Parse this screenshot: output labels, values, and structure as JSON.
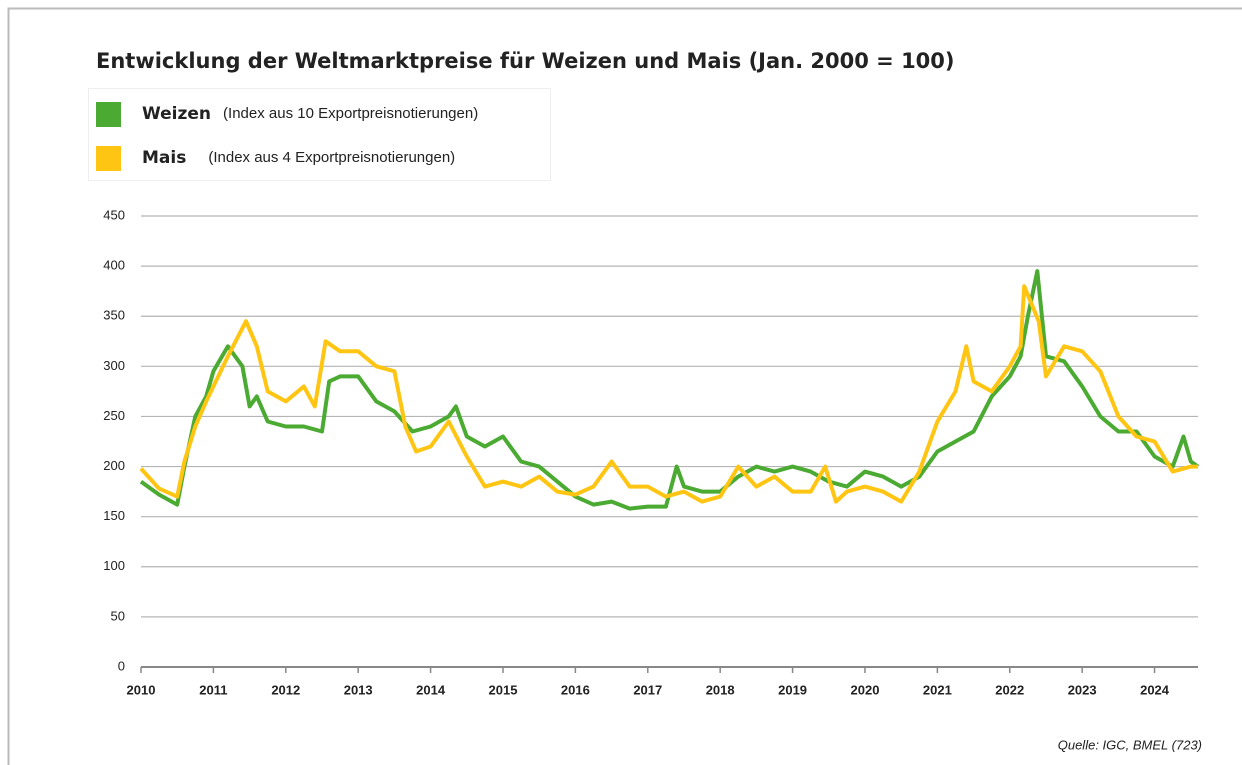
{
  "chart_data": {
    "type": "line",
    "title": "Entwicklung der Weltmarktpreise für Weizen und Mais   (Jan. 2000 = 100)",
    "source": "Quelle: IGC, BMEL (723)",
    "xlim": [
      2010,
      2024.6
    ],
    "xticks": [
      2010,
      2011,
      2012,
      2013,
      2014,
      2015,
      2016,
      2017,
      2018,
      2019,
      2020,
      2021,
      2022,
      2023,
      2024
    ],
    "ylim": [
      0,
      450
    ],
    "yticks": [
      0,
      50,
      100,
      150,
      200,
      250,
      300,
      350,
      400,
      450
    ],
    "grid": true,
    "series": [
      {
        "name": "Weizen",
        "description": "(Index aus 10 Exportpreisnotierungen)",
        "color": "#4aaa32",
        "x": [
          2010.0,
          2010.25,
          2010.5,
          2010.6,
          2010.75,
          2010.9,
          2011.0,
          2011.2,
          2011.4,
          2011.5,
          2011.6,
          2011.75,
          2012.0,
          2012.25,
          2012.5,
          2012.6,
          2012.75,
          2013.0,
          2013.25,
          2013.5,
          2013.75,
          2014.0,
          2014.25,
          2014.35,
          2014.5,
          2014.75,
          2015.0,
          2015.25,
          2015.5,
          2015.75,
          2016.0,
          2016.25,
          2016.5,
          2016.75,
          2017.0,
          2017.25,
          2017.4,
          2017.5,
          2017.75,
          2018.0,
          2018.25,
          2018.5,
          2018.75,
          2019.0,
          2019.25,
          2019.5,
          2019.75,
          2020.0,
          2020.25,
          2020.5,
          2020.75,
          2021.0,
          2021.25,
          2021.5,
          2021.75,
          2022.0,
          2022.15,
          2022.25,
          2022.38,
          2022.5,
          2022.75,
          2023.0,
          2023.25,
          2023.5,
          2023.75,
          2024.0,
          2024.25,
          2024.4,
          2024.5,
          2024.6
        ],
        "values": [
          185,
          172,
          162,
          200,
          250,
          270,
          295,
          320,
          300,
          260,
          270,
          245,
          240,
          240,
          235,
          285,
          290,
          290,
          265,
          255,
          235,
          240,
          250,
          260,
          230,
          220,
          230,
          205,
          200,
          185,
          170,
          162,
          165,
          158,
          160,
          160,
          200,
          180,
          175,
          175,
          190,
          200,
          195,
          200,
          195,
          185,
          180,
          195,
          190,
          180,
          190,
          215,
          225,
          235,
          270,
          290,
          310,
          350,
          395,
          310,
          305,
          280,
          250,
          235,
          235,
          210,
          200,
          230,
          205,
          200
        ]
      },
      {
        "name": "Mais",
        "description": "(Index aus 4 Exportpreisnotierungen)",
        "color": "#ffc512",
        "x": [
          2010.0,
          2010.25,
          2010.5,
          2010.6,
          2010.75,
          2010.9,
          2011.0,
          2011.2,
          2011.45,
          2011.6,
          2011.75,
          2012.0,
          2012.25,
          2012.4,
          2012.55,
          2012.75,
          2013.0,
          2013.25,
          2013.5,
          2013.65,
          2013.8,
          2014.0,
          2014.25,
          2014.5,
          2014.75,
          2015.0,
          2015.25,
          2015.5,
          2015.75,
          2016.0,
          2016.25,
          2016.5,
          2016.75,
          2017.0,
          2017.25,
          2017.5,
          2017.75,
          2018.0,
          2018.25,
          2018.5,
          2018.75,
          2019.0,
          2019.25,
          2019.45,
          2019.6,
          2019.75,
          2020.0,
          2020.25,
          2020.5,
          2020.75,
          2021.0,
          2021.25,
          2021.4,
          2021.5,
          2021.75,
          2022.0,
          2022.15,
          2022.2,
          2022.4,
          2022.5,
          2022.75,
          2023.0,
          2023.25,
          2023.5,
          2023.75,
          2024.0,
          2024.25,
          2024.5,
          2024.6
        ],
        "values": [
          198,
          178,
          170,
          205,
          240,
          265,
          280,
          310,
          345,
          320,
          275,
          265,
          280,
          260,
          325,
          315,
          315,
          300,
          295,
          240,
          215,
          220,
          245,
          210,
          180,
          185,
          180,
          190,
          175,
          172,
          180,
          205,
          180,
          180,
          170,
          175,
          165,
          170,
          200,
          180,
          190,
          175,
          175,
          200,
          165,
          175,
          180,
          175,
          165,
          195,
          245,
          275,
          320,
          285,
          275,
          300,
          320,
          380,
          345,
          290,
          320,
          315,
          295,
          250,
          230,
          225,
          195,
          200,
          200
        ]
      }
    ]
  }
}
